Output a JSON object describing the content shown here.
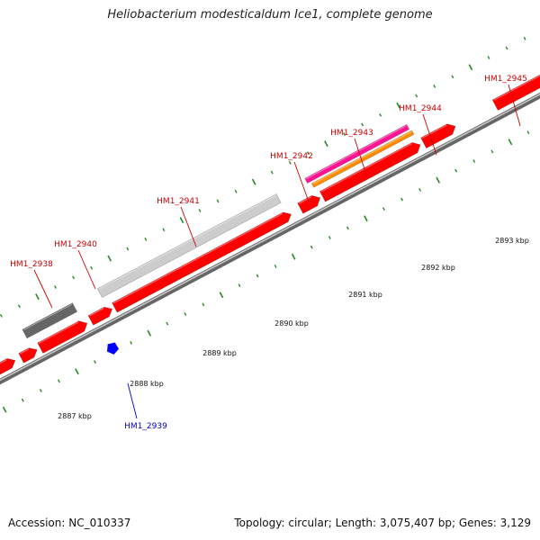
{
  "title": "Heliobacterium modesticaldum Ice1, complete genome",
  "footer": {
    "accession": "Accession: NC_010337",
    "topology": "Topology: circular; Length: 3,075,407 bp; Genes: 3,129"
  },
  "scale_labels": [
    "2887 kbp",
    "2888 kbp",
    "2889 kbp",
    "2890 kbp",
    "2891 kbp",
    "2892 kbp",
    "2893 kbp"
  ],
  "gene_labels": [
    "HM1_2938",
    "HM1_2939",
    "HM1_2940",
    "HM1_2941",
    "HM1_2942",
    "HM1_2943",
    "HM1_2944",
    "HM1_2945"
  ],
  "colors": {
    "cds": "#ff0000",
    "gene_label": "#cc0000",
    "minus_label": "#0000cc",
    "gray_feature": "#cccccc",
    "dark_feature": "#666666",
    "pink_feature": "#ff1493",
    "orange_feature": "#ff8c00",
    "blue_feature": "#0000ff",
    "tick_green": "#228b22"
  }
}
